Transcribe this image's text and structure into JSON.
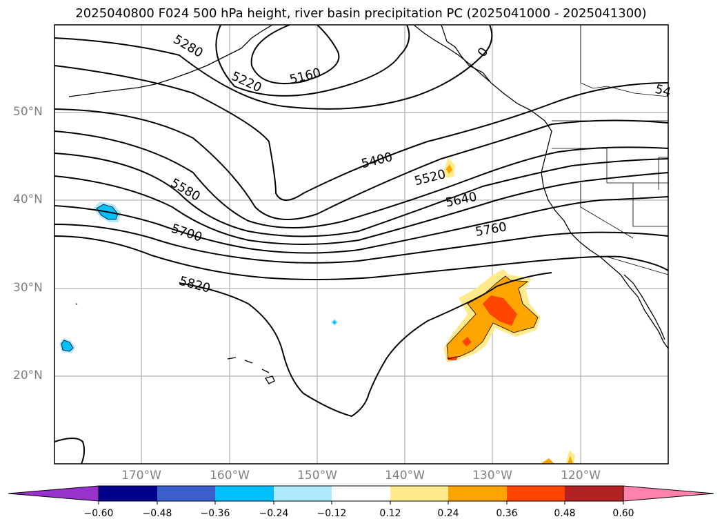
{
  "title": "2025040800 F024 500 hPa height, river basin precipitation PC (2025041000 - 2025041300)",
  "map": {
    "lat_labels": [
      "50°N",
      "40°N",
      "30°N",
      "20°N"
    ],
    "lon_labels": [
      "170°W",
      "160°W",
      "150°W",
      "140°W",
      "130°W",
      "120°W"
    ],
    "contour_labels": [
      "5160",
      "5220",
      "5280",
      "5400",
      "5520",
      "5580",
      "5640",
      "5700",
      "5760",
      "5820",
      "0",
      "54"
    ],
    "contour_color": "#000000",
    "grid_color": "#b0b0b0"
  },
  "colorbar": {
    "ticks": [
      "−0.60",
      "−0.48",
      "−0.36",
      "−0.24",
      "−0.12",
      "0.12",
      "0.24",
      "0.36",
      "0.48",
      "0.60"
    ],
    "colors": [
      "#9932cc",
      "#00008b",
      "#3a5fcd",
      "#00bfff",
      "#ade8fc",
      "#ffffff",
      "#ffeb8c",
      "#ffa500",
      "#ff4500",
      "#b22222",
      "#ff82ab"
    ]
  }
}
